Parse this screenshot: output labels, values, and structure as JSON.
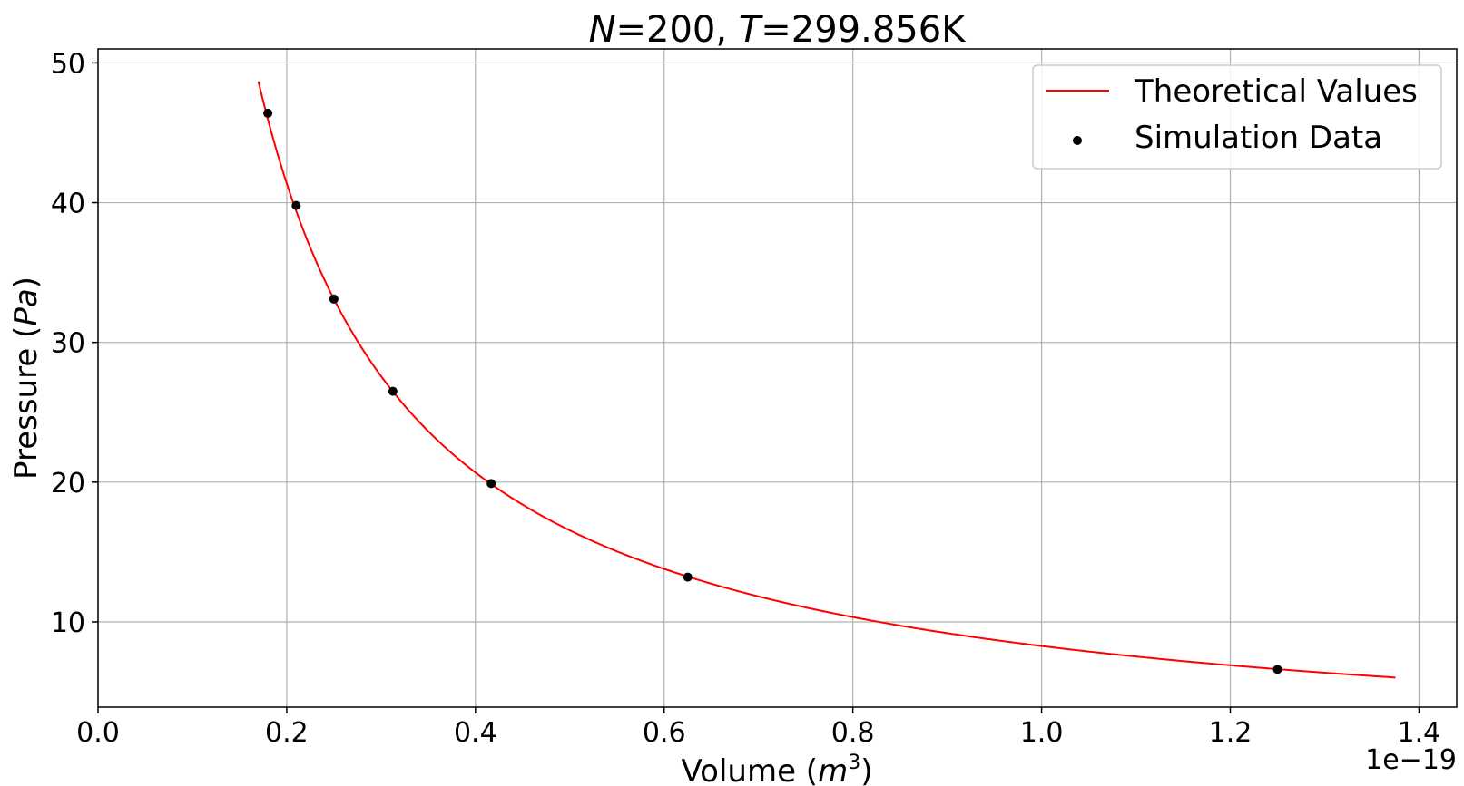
{
  "chart_data": {
    "type": "scatter",
    "title": {
      "n_sym": "N",
      "n_val": "=200, ",
      "t_sym": "T",
      "t_val": "=299.856K"
    },
    "xlabel": {
      "prefix": "Volume (",
      "var": "m",
      "sup": "3",
      "suffix": ")"
    },
    "ylabel": {
      "prefix": "Pressure (",
      "var": "Pa",
      "suffix": ")"
    },
    "x_offset_text": "1e−19",
    "xlim": [
      0.0,
      1.44
    ],
    "ylim": [
      3.9,
      51.0
    ],
    "xticks": [
      0.0,
      0.2,
      0.4,
      0.6,
      0.8,
      1.0,
      1.2,
      1.4
    ],
    "xtick_labels": [
      "0.0",
      "0.2",
      "0.4",
      "0.6",
      "0.8",
      "1.0",
      "1.2",
      "1.4"
    ],
    "yticks": [
      10,
      20,
      30,
      40,
      50
    ],
    "ytick_labels": [
      "10",
      "20",
      "30",
      "40",
      "50"
    ],
    "grid": true,
    "legend_position": "top-right",
    "series": [
      {
        "name": "Theoretical Values",
        "kind": "line",
        "color": "#ff0000",
        "formula_constant": 8.275,
        "x_range": [
          0.17,
          1.375
        ]
      },
      {
        "name": "Simulation Data",
        "kind": "scatter",
        "color": "#000000",
        "x": [
          0.18,
          0.21,
          0.25,
          0.3125,
          0.4167,
          0.625,
          1.25
        ],
        "y": [
          46.4,
          39.8,
          33.1,
          26.5,
          19.9,
          13.2,
          6.6
        ]
      }
    ]
  }
}
